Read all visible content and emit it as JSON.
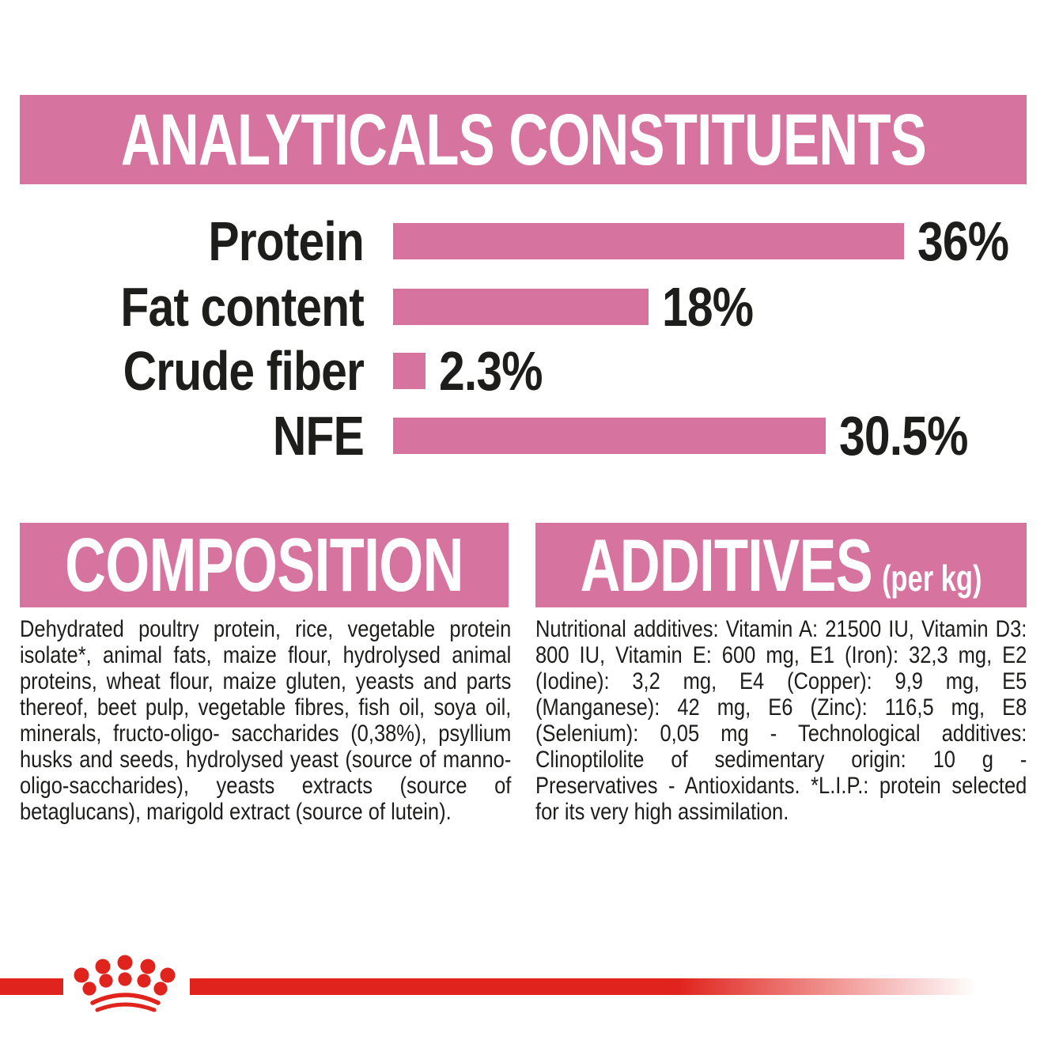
{
  "colors": {
    "background": "#ffffff",
    "pink": "#d6739f",
    "red": "#e0231c",
    "text": "#1d1d1b",
    "heading_text": "#ffffff"
  },
  "analyticals": {
    "title": "ANALYTICALS CONSTITUENTS"
  },
  "chart_data": {
    "type": "bar",
    "orientation": "horizontal",
    "title": "ANALYTICALS CONSTITUENTS",
    "categories": [
      "Protein",
      "Fat content",
      "Crude fiber",
      "NFE"
    ],
    "values": [
      36,
      18,
      2.3,
      30.5
    ],
    "value_labels": [
      "36%",
      "18%",
      "2.3%",
      "30.5%"
    ],
    "unit": "%",
    "xlim": [
      0,
      40
    ],
    "grid": false,
    "legend": false,
    "bar_color": "#d6739f",
    "label_color": "#1d1d1b"
  },
  "composition": {
    "title": "COMPOSITION",
    "body": "Dehydrated poultry protein, rice, vegetable protein isolate*, animal fats, maize flour, hydrolysed animal proteins, wheat flour, maize gluten, yeasts and parts thereof, beet pulp, vegetable fibres, fish oil, soya oil, minerals, fructo-oligo- saccharides (0,38%), psyllium husks and seeds, hydrolysed yeast (source of manno-oligo-saccharides), yeasts extracts (source of betaglucans), marigold extract (source of lutein)."
  },
  "additives": {
    "title": "ADDITIVES",
    "unit_label": "(per kg)",
    "body": "Nutritional additives: Vitamin A: 21500 IU, Vitamin D3: 800 IU, Vitamin E: 600 mg, E1 (Iron): 32,3 mg, E2 (Iodine): 3,2 mg, E4 (Copper): 9,9 mg, E5 (Manganese): 42 mg, E6 (Zinc): 116,5 mg, E8 (Selenium): 0,05 mg - Technological additives: Clinoptilolite of sedimentary origin: 10 g - Preservatives - Antioxidants. *L.I.P.: protein selected for its very high assimilation."
  },
  "footer": {
    "logo": "royal-canin-crown"
  }
}
